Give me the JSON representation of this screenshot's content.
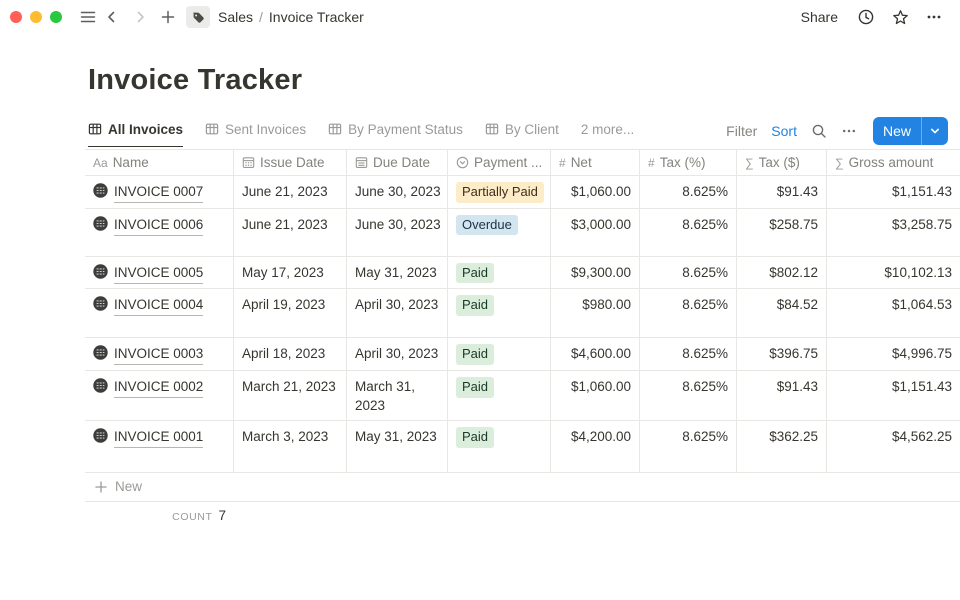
{
  "colors": {
    "accent_blue": "#2383e2",
    "badge_yellow_bg": "#fdecc8",
    "badge_blue_bg": "#d3e5ef",
    "badge_green_bg": "#dbeddb",
    "traffic_red": "#ff5f57",
    "traffic_yellow": "#febc2e",
    "traffic_green": "#28c840"
  },
  "icons": {
    "menu-icon": "hamburger lines",
    "back-icon": "chevron-left",
    "forward-icon": "chevron-right",
    "plus-icon": "plus",
    "tag-icon": "filled tag in gray box",
    "clock-icon": "clock outline",
    "star-icon": "star outline",
    "ellipsis-icon": "three dots",
    "search-icon": "magnifier",
    "table-view-icon": "table grid",
    "text-icon": "Aa",
    "calendar-icon": "calendar with dots",
    "calendar-lines-icon": "calendar with lines",
    "select-icon": "circled chevron-down",
    "number-icon": "#",
    "sum-icon": "∑",
    "invoice-page-icon": "dark circle with lines",
    "new-caret-icon": "chevron-down"
  },
  "titlebar": {
    "breadcrumb": {
      "parent": "Sales",
      "divider": "/",
      "current": "Invoice Tracker"
    },
    "share": "Share"
  },
  "page": {
    "title": "Invoice Tracker"
  },
  "view_tabs": {
    "tabs": [
      {
        "label": "All Invoices",
        "active": true
      },
      {
        "label": "Sent Invoices",
        "active": false
      },
      {
        "label": "By Payment Status",
        "active": false
      },
      {
        "label": "By Client",
        "active": false
      }
    ],
    "more": "2 more...",
    "filter": "Filter",
    "sort": "Sort",
    "new_button": "New"
  },
  "table": {
    "columns": [
      {
        "label": "Name",
        "icon": "text-icon",
        "align": "left"
      },
      {
        "label": "Issue Date",
        "icon": "calendar-icon",
        "align": "left"
      },
      {
        "label": "Due Date",
        "icon": "calendar-lines-icon",
        "align": "left"
      },
      {
        "label": "Payment ...",
        "icon": "select-icon",
        "align": "left"
      },
      {
        "label": "Net",
        "icon": "number-icon",
        "align": "right"
      },
      {
        "label": "Tax (%)",
        "icon": "number-icon",
        "align": "right"
      },
      {
        "label": "Tax ($)",
        "icon": "sum-icon",
        "align": "right"
      },
      {
        "label": "Gross amount",
        "icon": "sum-icon",
        "align": "right"
      }
    ],
    "rows": [
      {
        "name": "INVOICE 0007",
        "issue_date": "June 21, 2023",
        "due_date": "June 30, 2023",
        "payment_status": "Partially Paid",
        "status_color": "yellow",
        "net": "$1,060.00",
        "tax_pct": "8.625%",
        "tax_usd": "$91.43",
        "gross": "$1,151.43"
      },
      {
        "name": "INVOICE 0006",
        "issue_date": "June 21, 2023",
        "due_date": "June 30, 2023",
        "payment_status": "Overdue",
        "status_color": "blue",
        "net": "$3,000.00",
        "tax_pct": "8.625%",
        "tax_usd": "$258.75",
        "gross": "$3,258.75"
      },
      {
        "name": "INVOICE 0005",
        "issue_date": "May 17, 2023",
        "due_date": "May 31, 2023",
        "payment_status": "Paid",
        "status_color": "green",
        "net": "$9,300.00",
        "tax_pct": "8.625%",
        "tax_usd": "$802.12",
        "gross": "$10,102.13"
      },
      {
        "name": "INVOICE 0004",
        "issue_date": "April 19, 2023",
        "due_date": "April 30, 2023",
        "payment_status": "Paid",
        "status_color": "green",
        "net": "$980.00",
        "tax_pct": "8.625%",
        "tax_usd": "$84.52",
        "gross": "$1,064.53"
      },
      {
        "name": "INVOICE 0003",
        "issue_date": "April 18, 2023",
        "due_date": "April 30, 2023",
        "payment_status": "Paid",
        "status_color": "green",
        "net": "$4,600.00",
        "tax_pct": "8.625%",
        "tax_usd": "$396.75",
        "gross": "$4,996.75"
      },
      {
        "name": "INVOICE 0002",
        "issue_date": "March 21, 2023",
        "due_date": "March 31, 2023",
        "payment_status": "Paid",
        "status_color": "green",
        "net": "$1,060.00",
        "tax_pct": "8.625%",
        "tax_usd": "$91.43",
        "gross": "$1,151.43"
      },
      {
        "name": "INVOICE 0001",
        "issue_date": "March 3, 2023",
        "due_date": "May 31, 2023",
        "payment_status": "Paid",
        "status_color": "green",
        "net": "$4,200.00",
        "tax_pct": "8.625%",
        "tax_usd": "$362.25",
        "gross": "$4,562.25"
      }
    ],
    "new_row": "New",
    "footer": {
      "count_label": "COUNT",
      "count_value": "7"
    }
  }
}
